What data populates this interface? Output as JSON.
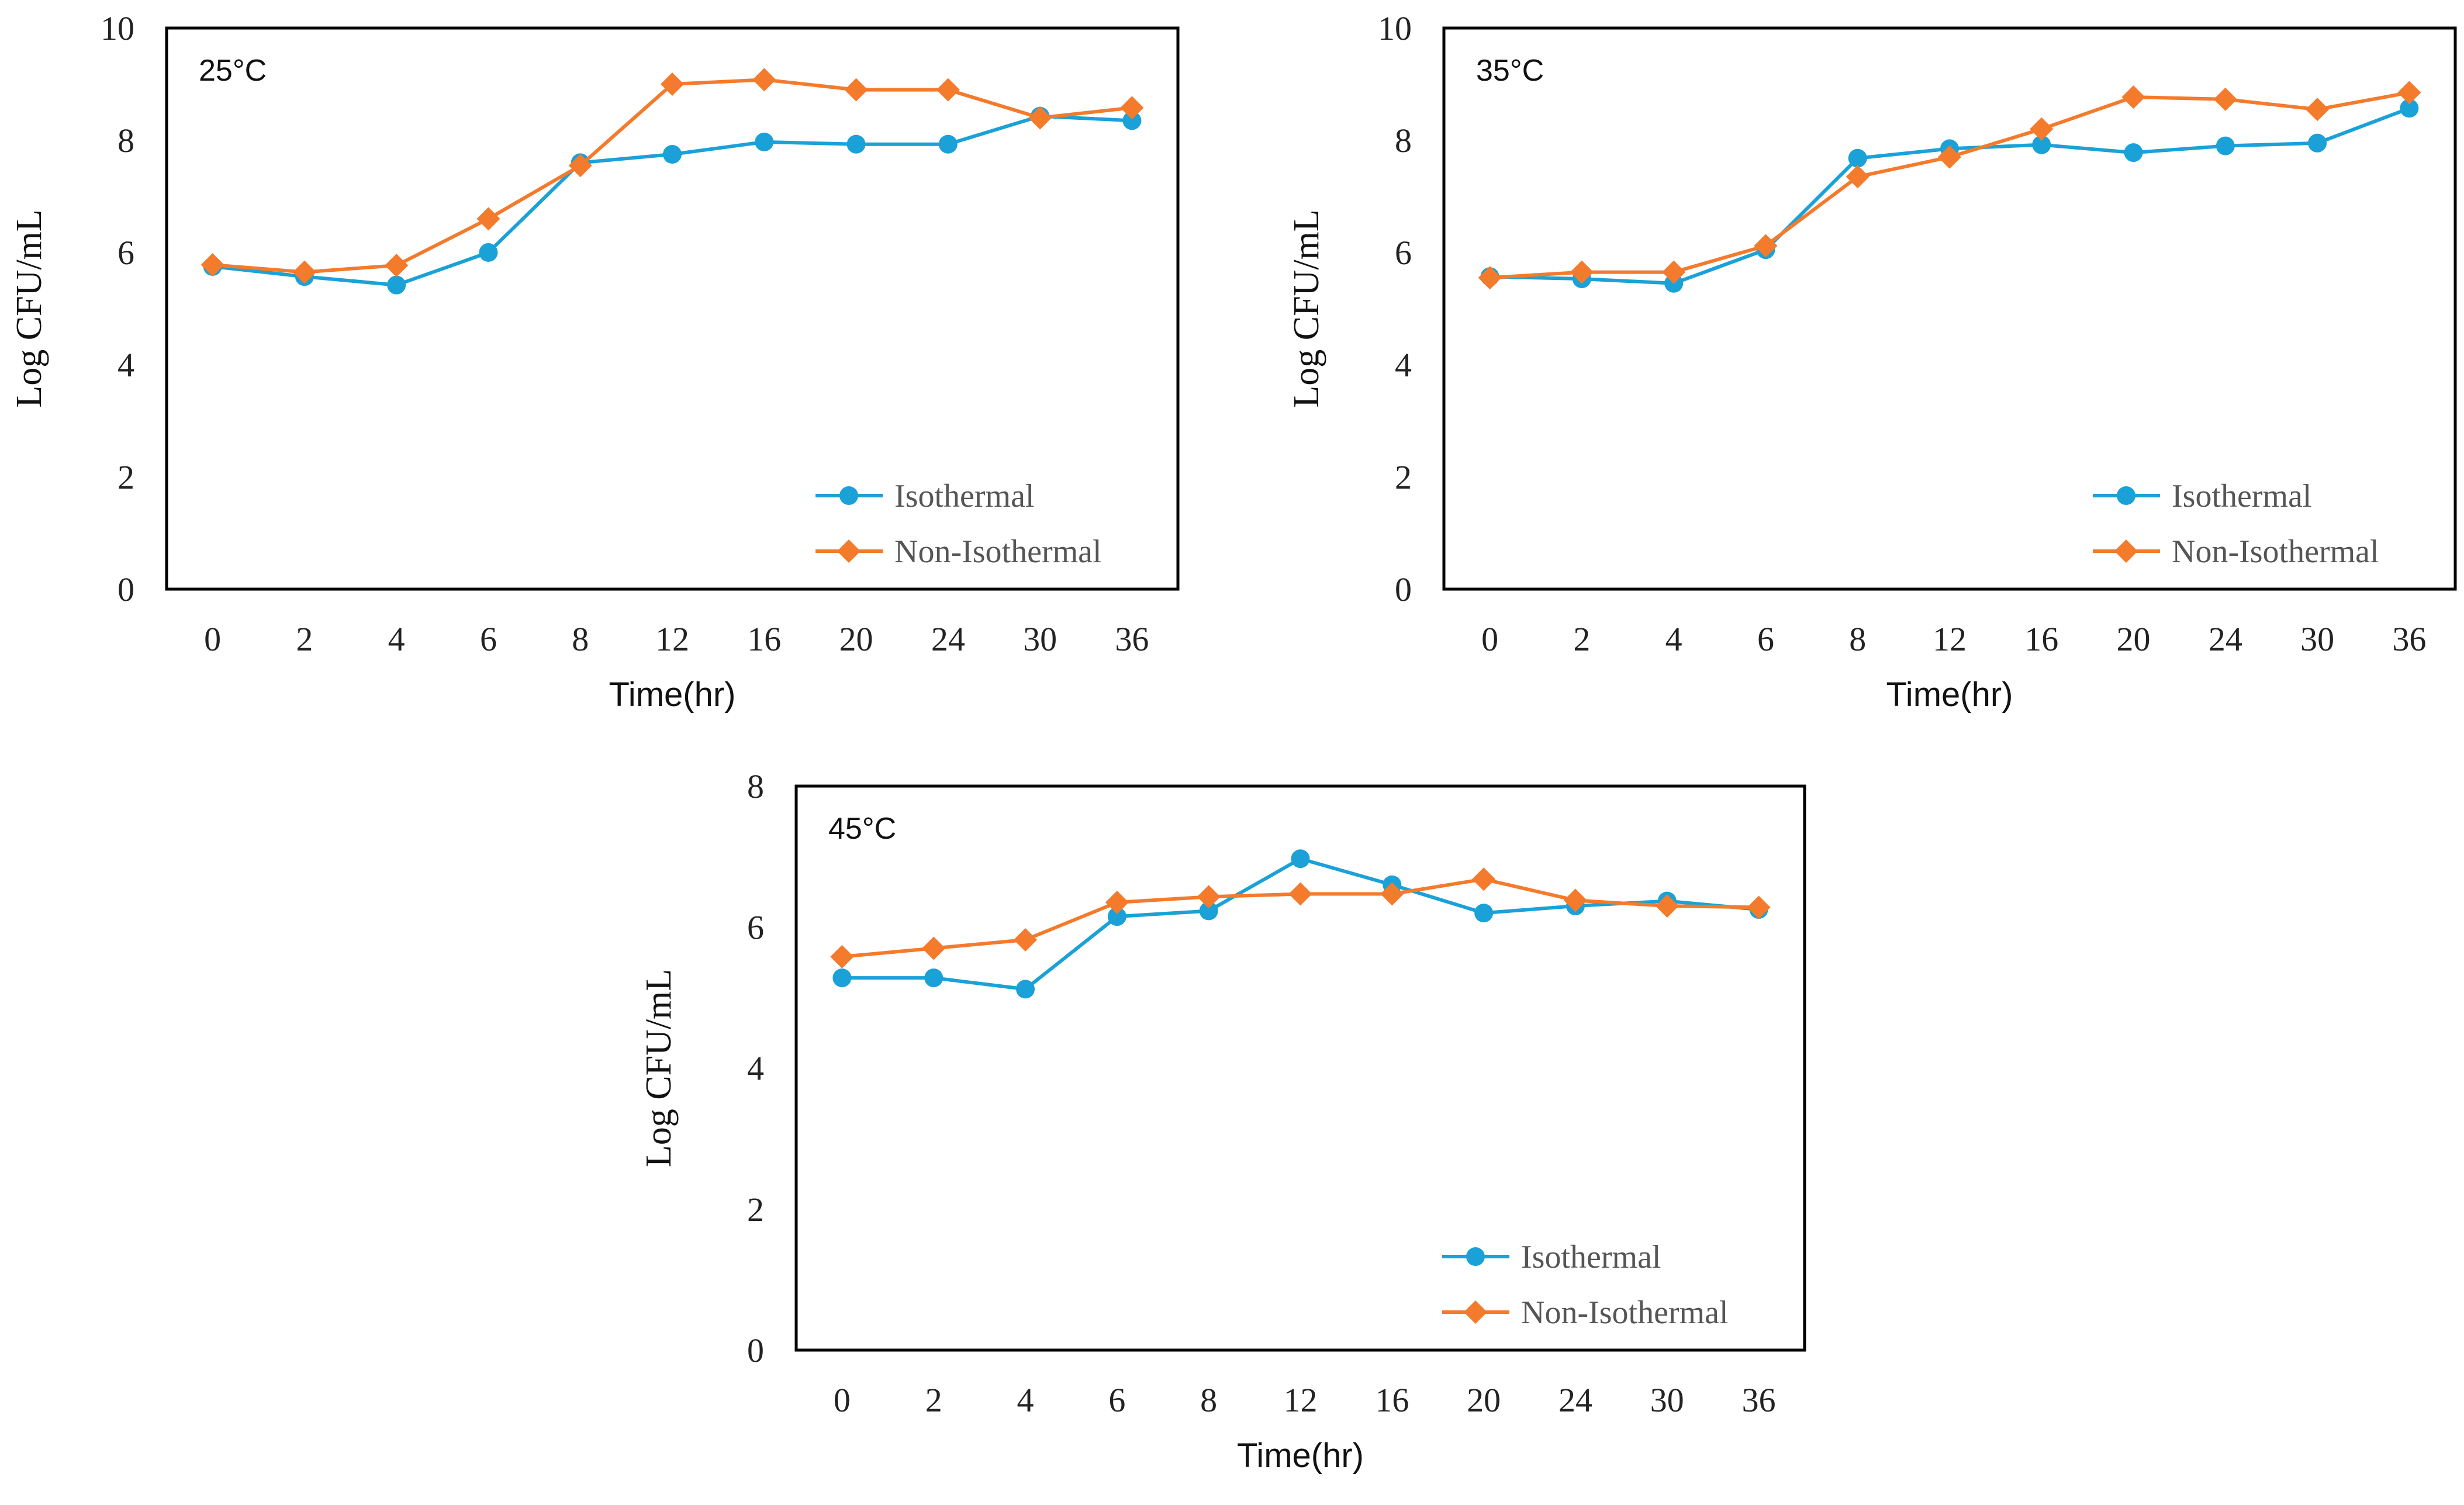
{
  "chart_data": [
    {
      "type": "line",
      "panel_label": "25°C",
      "categories": [
        "0",
        "2",
        "4",
        "6",
        "8",
        "12",
        "16",
        "20",
        "24",
        "30",
        "36"
      ],
      "series": [
        {
          "name": "Isothermal",
          "color": "#1aa1d8",
          "marker": "circle",
          "values": [
            5.75,
            5.57,
            5.42,
            6.0,
            7.6,
            7.75,
            7.97,
            7.93,
            7.93,
            8.43,
            8.35
          ]
        },
        {
          "name": "Non-Isothermal",
          "color": "#f47a2c",
          "marker": "diamond",
          "values": [
            5.78,
            5.65,
            5.77,
            6.6,
            7.55,
            9.0,
            9.08,
            8.9,
            8.9,
            8.4,
            8.58
          ]
        }
      ],
      "xlabel": "Time(hr)",
      "ylabel": "Log CFU/mL",
      "ylim": [
        0,
        10
      ],
      "yticks": [
        "0",
        "2",
        "4",
        "6",
        "8",
        "10"
      ],
      "legend_position": "bottom-right",
      "grid": false
    },
    {
      "type": "line",
      "panel_label": "35°C",
      "categories": [
        "0",
        "2",
        "4",
        "6",
        "8",
        "12",
        "16",
        "20",
        "24",
        "30",
        "36"
      ],
      "series": [
        {
          "name": "Isothermal",
          "color": "#1aa1d8",
          "marker": "circle",
          "values": [
            5.57,
            5.53,
            5.45,
            6.05,
            7.68,
            7.85,
            7.92,
            7.78,
            7.9,
            7.95,
            8.57
          ]
        },
        {
          "name": "Non-Isothermal",
          "color": "#f47a2c",
          "marker": "diamond",
          "values": [
            5.55,
            5.65,
            5.65,
            6.12,
            7.35,
            7.7,
            8.2,
            8.77,
            8.73,
            8.55,
            8.85
          ]
        }
      ],
      "xlabel": "Time(hr)",
      "ylabel": "Log CFU/mL",
      "ylim": [
        0,
        10
      ],
      "yticks": [
        "0",
        "2",
        "4",
        "6",
        "8",
        "10"
      ],
      "legend_position": "bottom-right",
      "grid": false
    },
    {
      "type": "line",
      "panel_label": "45°C",
      "categories": [
        "0",
        "2",
        "4",
        "6",
        "8",
        "12",
        "16",
        "20",
        "24",
        "30",
        "36"
      ],
      "series": [
        {
          "name": "Isothermal",
          "color": "#1aa1d8",
          "marker": "circle",
          "values": [
            5.28,
            5.28,
            5.12,
            6.15,
            6.23,
            6.97,
            6.6,
            6.2,
            6.3,
            6.37,
            6.25
          ]
        },
        {
          "name": "Non-Isothermal",
          "color": "#f47a2c",
          "marker": "diamond",
          "values": [
            5.58,
            5.7,
            5.82,
            6.35,
            6.43,
            6.47,
            6.47,
            6.68,
            6.38,
            6.3,
            6.28
          ]
        }
      ],
      "xlabel": "Time(hr)",
      "ylabel": "Log CFU/mL",
      "ylim": [
        0,
        8
      ],
      "yticks": [
        "0",
        "2",
        "4",
        "6",
        "8"
      ],
      "legend_position": "bottom-right",
      "grid": false
    }
  ]
}
